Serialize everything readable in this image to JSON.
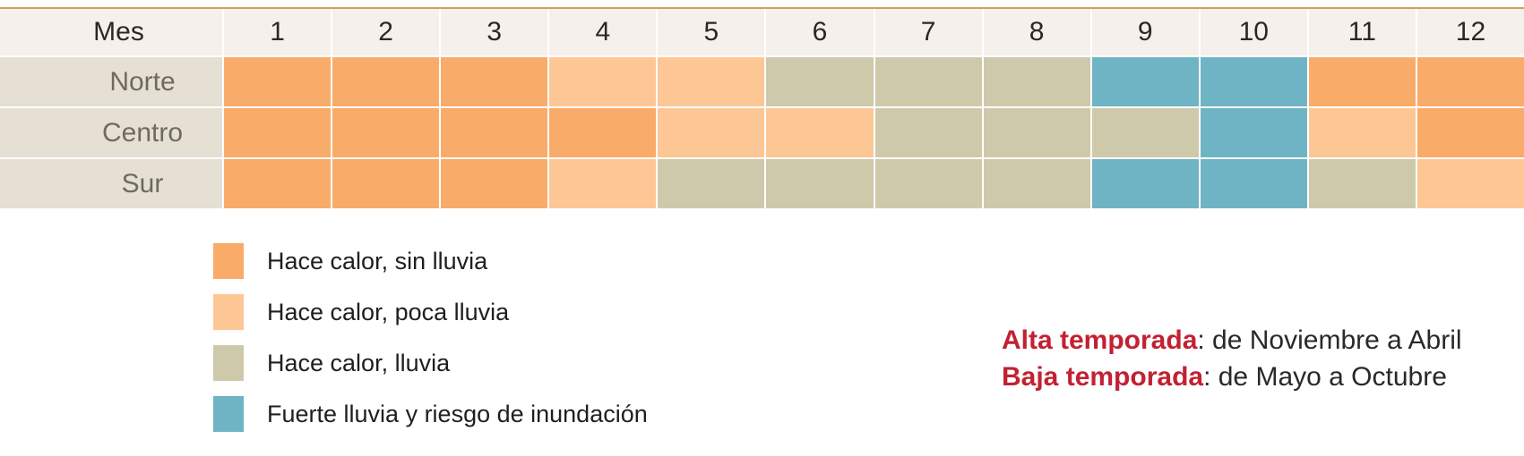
{
  "chart_data": {
    "type": "heatmap",
    "corner_label": "Mes",
    "x_categories": [
      "1",
      "2",
      "3",
      "4",
      "5",
      "6",
      "7",
      "8",
      "9",
      "10",
      "11",
      "12"
    ],
    "y_categories": [
      "Norte",
      "Centro",
      "Sur"
    ],
    "rows": [
      {
        "label": "Norte",
        "values": [
          "sin",
          "sin",
          "sin",
          "poca",
          "poca",
          "lluvia",
          "lluvia",
          "lluvia",
          "fuerte",
          "fuerte",
          "sin",
          "sin"
        ]
      },
      {
        "label": "Centro",
        "values": [
          "sin",
          "sin",
          "sin",
          "sin",
          "poca",
          "poca",
          "lluvia",
          "lluvia",
          "lluvia",
          "fuerte",
          "poca",
          "sin"
        ]
      },
      {
        "label": "Sur",
        "values": [
          "sin",
          "sin",
          "sin",
          "poca",
          "lluvia",
          "lluvia",
          "lluvia",
          "lluvia",
          "fuerte",
          "fuerte",
          "lluvia",
          "poca"
        ]
      }
    ],
    "legend": [
      {
        "key": "sin",
        "label": "Hace calor, sin lluvia",
        "color": "#F9AB6A"
      },
      {
        "key": "poca",
        "label": "Hace calor, poca lluvia",
        "color": "#FDC795"
      },
      {
        "key": "lluvia",
        "label": "Hace calor, lluvia",
        "color": "#CFC9AC"
      },
      {
        "key": "fuerte",
        "label": "Fuerte lluvia y riesgo de inundación",
        "color": "#6FB4C4"
      }
    ],
    "annotations": [
      {
        "label": "Alta temporada",
        "text": ": de Noviembre a Abril"
      },
      {
        "label": "Baja temporada",
        "text": ": de Mayo a Octubre"
      }
    ],
    "legend_position": "bottom-left",
    "grid": true
  },
  "ui_colors": {
    "page_bg": "#FFFFFF",
    "top_rule": "#C9A357",
    "header_bg": "#F5F0EC",
    "header_text": "#2B2723",
    "row_label_bg": "#E5DFD4",
    "row_label_text": "#6F6A5E",
    "legend_text": "#211E1C",
    "note_text": "#2B2826",
    "note_accent": "#C22132"
  }
}
